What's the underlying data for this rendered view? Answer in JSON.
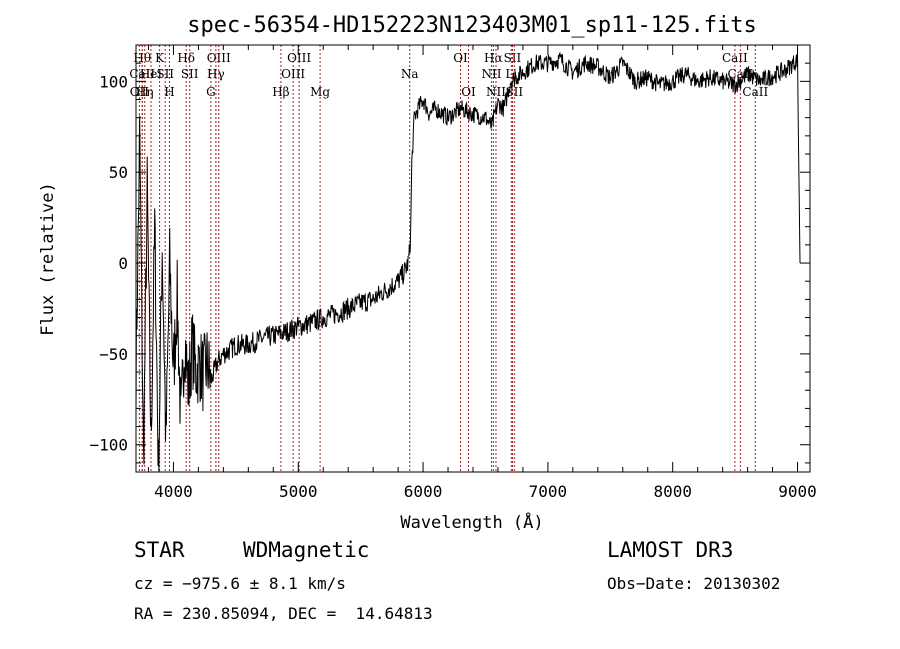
{
  "chart_data": {
    "type": "line",
    "title": "spec-56354-HD152223N123403M01_sp11-125.fits",
    "xlabel": "Wavelength (Å)",
    "ylabel": "Flux (relative)",
    "xlim": [
      3700,
      9100
    ],
    "ylim": [
      -115,
      120
    ],
    "x_ticks": [
      4000,
      5000,
      6000,
      7000,
      8000,
      9000
    ],
    "x_tick_labels": [
      "4000",
      "5000",
      "6000",
      "7000",
      "8000",
      "9000"
    ],
    "y_ticks": [
      -100,
      -50,
      0,
      50,
      100
    ],
    "y_tick_labels": [
      "−100",
      "−50",
      "0",
      "50",
      "100"
    ],
    "line_color": "#000000",
    "marker_color": "#aa2222",
    "series": [
      {
        "name": "flux",
        "x": [
          3700,
          3730,
          3760,
          3790,
          3820,
          3850,
          3880,
          3910,
          3940,
          3970,
          4000,
          4030,
          4060,
          4090,
          4120,
          4150,
          4180,
          4210,
          4240,
          4270,
          4300,
          4350,
          4400,
          4450,
          4500,
          4600,
          4700,
          4800,
          4900,
          5000,
          5100,
          5200,
          5300,
          5400,
          5500,
          5600,
          5700,
          5800,
          5850,
          5880,
          5890,
          5900,
          5910,
          5930,
          5960,
          6000,
          6050,
          6100,
          6200,
          6300,
          6400,
          6500,
          6550,
          6600,
          6650,
          6700,
          6800,
          6900,
          7000,
          7100,
          7200,
          7300,
          7400,
          7500,
          7600,
          7700,
          7800,
          7900,
          8000,
          8100,
          8200,
          8300,
          8400,
          8500,
          8600,
          8700,
          8800,
          8900,
          9000,
          9020
        ],
        "y": [
          -60,
          70,
          -110,
          40,
          -100,
          20,
          -115,
          10,
          -100,
          0,
          -60,
          -20,
          -90,
          -40,
          -70,
          -45,
          -60,
          -55,
          -62,
          -55,
          -65,
          -55,
          -50,
          -48,
          -45,
          -45,
          -42,
          -40,
          -38,
          -35,
          -33,
          -30,
          -28,
          -25,
          -22,
          -20,
          -15,
          -10,
          -5,
          0,
          5,
          15,
          55,
          80,
          85,
          90,
          82,
          85,
          80,
          85,
          82,
          80,
          75,
          88,
          85,
          100,
          105,
          110,
          110,
          112,
          105,
          110,
          108,
          102,
          110,
          100,
          102,
          98,
          100,
          104,
          100,
          102,
          100,
          98,
          104,
          100,
          103,
          106,
          112,
          0
        ]
      }
    ],
    "line_markers": [
      {
        "wavelength": 3727,
        "label": "OII",
        "row": 3
      },
      {
        "wavelength": 3750,
        "label": "Hθ",
        "row": 1
      },
      {
        "wavelength": 3750,
        "label": "CaII",
        "row": 2
      },
      {
        "wavelength": 3770,
        "label": "Hη",
        "row": 3
      },
      {
        "wavelength": 3820,
        "label": "HeI",
        "row": 2
      },
      {
        "wavelength": 3889,
        "label": "K",
        "row": 1
      },
      {
        "wavelength": 3934,
        "label": "SII",
        "row": 2
      },
      {
        "wavelength": 3968,
        "label": "H",
        "row": 3
      },
      {
        "wavelength": 4102,
        "label": "Hδ",
        "row": 1
      },
      {
        "wavelength": 4130,
        "label": "SII",
        "row": 2
      },
      {
        "wavelength": 4300,
        "label": "G",
        "row": 3
      },
      {
        "wavelength": 4340,
        "label": "Hγ",
        "row": 2
      },
      {
        "wavelength": 4363,
        "label": "OIII",
        "row": 1
      },
      {
        "wavelength": 4861,
        "label": "Hβ",
        "row": 3
      },
      {
        "wavelength": 4959,
        "label": "OIII",
        "row": 2
      },
      {
        "wavelength": 5007,
        "label": "OIII",
        "row": 1
      },
      {
        "wavelength": 5175,
        "label": "Mg",
        "row": 3
      },
      {
        "wavelength": 5893,
        "label": "Na",
        "row": 2
      },
      {
        "wavelength": 6300,
        "label": "OI",
        "row": 1
      },
      {
        "wavelength": 6364,
        "label": "OI",
        "row": 3
      },
      {
        "wavelength": 6548,
        "label": "NII",
        "row": 2
      },
      {
        "wavelength": 6563,
        "label": "Hα",
        "row": 1
      },
      {
        "wavelength": 6584,
        "label": "NII",
        "row": 3
      },
      {
        "wavelength": 6707,
        "label": "Li",
        "row": 2
      },
      {
        "wavelength": 6716,
        "label": "SII",
        "row": 1
      },
      {
        "wavelength": 6731,
        "label": "SII",
        "row": 3
      },
      {
        "wavelength": 8498,
        "label": "CaII",
        "row": 1
      },
      {
        "wavelength": 8542,
        "label": "CaII",
        "row": 2
      },
      {
        "wavelength": 8662,
        "label": "CaII",
        "row": 3
      }
    ]
  },
  "info": {
    "object_type": "STAR",
    "subclass": "WDMagnetic",
    "survey": "LAMOST DR3",
    "cz": "cz = −975.6 ± 8.1 km/s",
    "obs_date": "Obs−Date: 20130302",
    "coords": "RA = 230.85094, DEC =  14.64813"
  }
}
